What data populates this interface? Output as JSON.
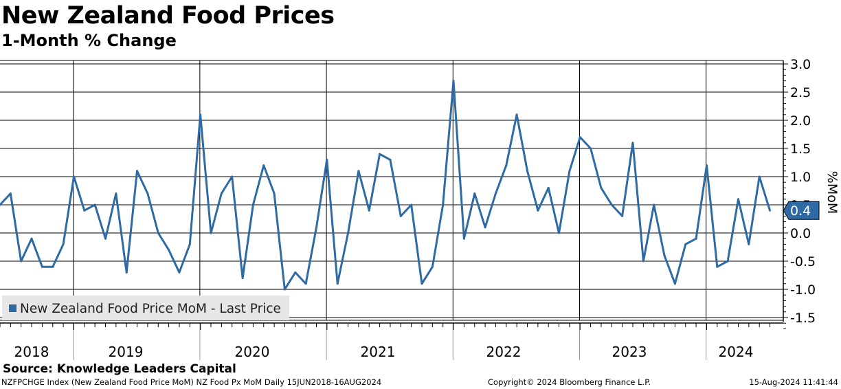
{
  "header": {
    "title": "New Zealand Food Prices",
    "subtitle": "1-Month % Change"
  },
  "chart_data": {
    "type": "line",
    "title": "New Zealand Food Prices",
    "subtitle": "1-Month % Change",
    "ylabel": "%MoM",
    "xlabel": "",
    "ylim": [
      -1.75,
      3.1
    ],
    "y_ticks": [
      3.0,
      2.5,
      2.0,
      1.5,
      1.0,
      0.5,
      0.0,
      -0.5,
      -1.0,
      -1.5
    ],
    "y_tick_labels": [
      "3.0",
      "2.5",
      "2.0",
      "1.5",
      "1.0",
      "0.5",
      "0.0",
      "-0.5",
      "-1.0",
      "-1.5"
    ],
    "year_labels": [
      "2018",
      "2019",
      "2020",
      "2021",
      "2022",
      "2023",
      "2024"
    ],
    "legend": "New Zealand Food Price MoM - Last Price",
    "legend_position": "bottom-left",
    "last_value_label": "0.4",
    "series": [
      {
        "name": "New Zealand Food Price MoM - Last Price",
        "color": "#2e6aa3",
        "x": [
          "2018-06",
          "2018-07",
          "2018-08",
          "2018-09",
          "2018-10",
          "2018-11",
          "2018-12",
          "2019-01",
          "2019-02",
          "2019-03",
          "2019-04",
          "2019-05",
          "2019-06",
          "2019-07",
          "2019-08",
          "2019-09",
          "2019-10",
          "2019-11",
          "2019-12",
          "2020-01",
          "2020-02",
          "2020-03",
          "2020-04",
          "2020-05",
          "2020-06",
          "2020-07",
          "2020-08",
          "2020-09",
          "2020-10",
          "2020-11",
          "2020-12",
          "2021-01",
          "2021-02",
          "2021-03",
          "2021-04",
          "2021-05",
          "2021-06",
          "2021-07",
          "2021-08",
          "2021-09",
          "2021-10",
          "2021-11",
          "2021-12",
          "2022-01",
          "2022-02",
          "2022-03",
          "2022-04",
          "2022-05",
          "2022-06",
          "2022-07",
          "2022-08",
          "2022-09",
          "2022-10",
          "2022-11",
          "2022-12",
          "2023-01",
          "2023-02",
          "2023-03",
          "2023-04",
          "2023-05",
          "2023-06",
          "2023-07",
          "2023-08",
          "2023-09",
          "2023-10",
          "2023-11",
          "2023-12",
          "2024-01",
          "2024-02",
          "2024-03",
          "2024-04",
          "2024-05",
          "2024-06",
          "2024-07"
        ],
        "values": [
          0.5,
          0.7,
          -0.5,
          -0.1,
          -0.6,
          -0.6,
          -0.2,
          1.0,
          0.4,
          0.5,
          -0.1,
          0.7,
          -0.7,
          1.1,
          0.7,
          0.0,
          -0.3,
          -0.7,
          -0.2,
          2.1,
          0.0,
          0.7,
          1.0,
          -0.8,
          0.5,
          1.2,
          0.7,
          -1.0,
          -0.7,
          -0.9,
          0.1,
          1.3,
          -0.9,
          0.0,
          1.1,
          0.4,
          1.4,
          1.3,
          0.3,
          0.5,
          -0.9,
          -0.6,
          0.5,
          2.7,
          -0.1,
          0.7,
          0.1,
          0.7,
          1.2,
          2.1,
          1.1,
          0.4,
          0.8,
          0.0,
          1.1,
          1.7,
          1.5,
          0.8,
          0.5,
          0.3,
          1.6,
          -0.5,
          0.5,
          -0.4,
          -0.9,
          -0.2,
          -0.1,
          1.2,
          -0.6,
          -0.5,
          0.6,
          -0.2,
          1.0,
          0.4
        ]
      }
    ]
  },
  "footer": {
    "source": "Source: Knowledge Leaders Capital",
    "ticker": "NZFPCHGE Index (New Zealand Food Price MoM) NZ Food Px MoM  Daily 15JUN2018-16AUG2024",
    "copyright": "Copyright© 2024 Bloomberg Finance L.P.",
    "timestamp": "15-Aug-2024 11:41:44"
  }
}
